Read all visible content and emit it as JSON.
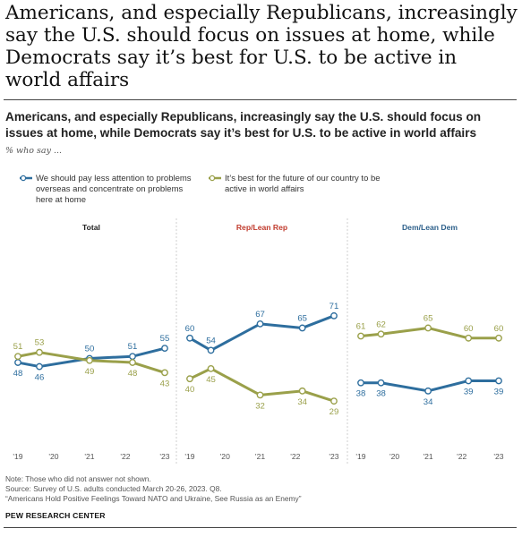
{
  "headline": "Americans, and especially Republicans, increasingly say the U.S. should focus on issues at home, while Democrats say it’s best for U.S. to be active in world affairs",
  "subtitle": "Americans, and especially Republicans, increasingly say the U.S. should focus on issues at home, while Democrats say it’s best for U.S. to be active in world affairs",
  "who_say": "% who say ...",
  "legend": [
    {
      "label": "We should pay less attention to problems overseas and concentrate on problems here at home",
      "color": "#2e6e9e"
    },
    {
      "label": "It’s best for the future of our country to be active in world affairs",
      "color": "#9aa04a"
    }
  ],
  "colors": {
    "home": "#2e6e9e",
    "world": "#9aa04a",
    "rep_title": "#c0392b",
    "dem_title": "#2c5f8a",
    "total_title": "#222222"
  },
  "chart_data": [
    {
      "type": "line",
      "title": "Total",
      "x_ticks": [
        "'19",
        "'20",
        "'21",
        "'22",
        "'23"
      ],
      "series": [
        {
          "name": "We should pay less attention to problems overseas and concentrate on problems here at home",
          "points": [
            {
              "x": 2019.0,
              "y": 48
            },
            {
              "x": 2019.6,
              "y": 46
            },
            {
              "x": 2021.0,
              "y": 50
            },
            {
              "x": 2022.2,
              "y": 51
            },
            {
              "x": 2023.1,
              "y": 55
            }
          ]
        },
        {
          "name": "It’s best for the future of our country to be active in world affairs",
          "points": [
            {
              "x": 2019.0,
              "y": 51
            },
            {
              "x": 2019.6,
              "y": 53
            },
            {
              "x": 2021.0,
              "y": 49
            },
            {
              "x": 2022.2,
              "y": 48
            },
            {
              "x": 2023.1,
              "y": 43
            }
          ]
        }
      ]
    },
    {
      "type": "line",
      "title": "Rep/Lean Rep",
      "x_ticks": [
        "'19",
        "'20",
        "'21",
        "'22",
        "'23"
      ],
      "series": [
        {
          "name": "We should pay less attention to problems overseas and concentrate on problems here at home",
          "points": [
            {
              "x": 2019.0,
              "y": 60
            },
            {
              "x": 2019.6,
              "y": 54
            },
            {
              "x": 2021.0,
              "y": 67
            },
            {
              "x": 2022.2,
              "y": 65
            },
            {
              "x": 2023.1,
              "y": 71
            }
          ]
        },
        {
          "name": "It’s best for the future of our country to be active in world affairs",
          "points": [
            {
              "x": 2019.0,
              "y": 40
            },
            {
              "x": 2019.6,
              "y": 45
            },
            {
              "x": 2021.0,
              "y": 32
            },
            {
              "x": 2022.2,
              "y": 34
            },
            {
              "x": 2023.1,
              "y": 29
            }
          ]
        }
      ]
    },
    {
      "type": "line",
      "title": "Dem/Lean Dem",
      "x_ticks": [
        "'19",
        "'20",
        "'21",
        "'22",
        "'23"
      ],
      "series": [
        {
          "name": "We should pay less attention to problems overseas and concentrate on problems here at home",
          "points": [
            {
              "x": 2019.0,
              "y": 38
            },
            {
              "x": 2019.6,
              "y": 38
            },
            {
              "x": 2021.0,
              "y": 34
            },
            {
              "x": 2022.2,
              "y": 39
            },
            {
              "x": 2023.1,
              "y": 39
            }
          ]
        },
        {
          "name": "It’s best for the future of our country to be active in world affairs",
          "points": [
            {
              "x": 2019.0,
              "y": 61
            },
            {
              "x": 2019.6,
              "y": 62
            },
            {
              "x": 2021.0,
              "y": 65
            },
            {
              "x": 2022.2,
              "y": 60
            },
            {
              "x": 2023.1,
              "y": 60
            }
          ]
        }
      ]
    }
  ],
  "notes": {
    "note": "Note: Those who did not answer not shown.",
    "source": "Source: Survey of U.S. adults conducted March 20-26, 2023. Q8.",
    "report": "“Americans Hold Positive Feelings Toward NATO and Ukraine, See Russia as an Enemy”",
    "org": "PEW RESEARCH CENTER"
  }
}
